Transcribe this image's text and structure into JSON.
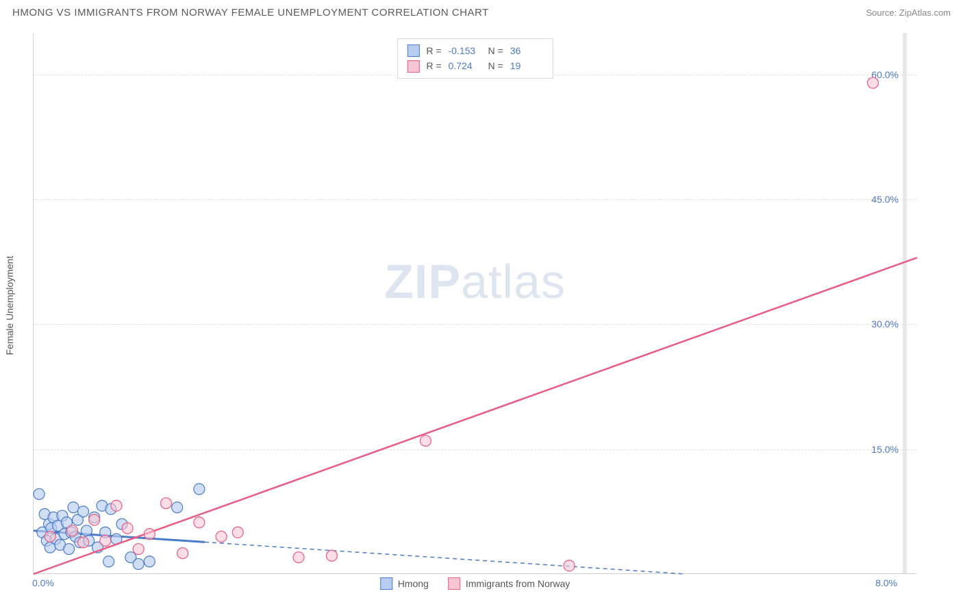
{
  "header": {
    "title": "HMONG VS IMMIGRANTS FROM NORWAY FEMALE UNEMPLOYMENT CORRELATION CHART",
    "source": "Source: ZipAtlas.com"
  },
  "chart": {
    "type": "scatter",
    "y_axis_label": "Female Unemployment",
    "watermark": "ZIPatlas",
    "xlim": [
      0,
      8.0
    ],
    "ylim": [
      0,
      65
    ],
    "y_ticks": [
      {
        "value": 15.0,
        "label": "15.0%"
      },
      {
        "value": 30.0,
        "label": "30.0%"
      },
      {
        "value": 45.0,
        "label": "45.0%"
      },
      {
        "value": 60.0,
        "label": "60.0%"
      }
    ],
    "x_left_label": "0.0%",
    "x_right_label": "8.0%",
    "grid_color": "#e0e0e0",
    "background_color": "#ffffff",
    "stats_legend": [
      {
        "swatch_fill": "#b8cef0",
        "swatch_border": "#4a7ac8",
        "r": "-0.153",
        "n": "36"
      },
      {
        "swatch_fill": "#f6c6d4",
        "swatch_border": "#e85b83",
        "r": "0.724",
        "n": "19"
      }
    ],
    "bottom_legend": [
      {
        "swatch_fill": "#b8cef0",
        "swatch_border": "#4a7ac8",
        "label": "Hmong"
      },
      {
        "swatch_fill": "#f6c6d4",
        "swatch_border": "#e85b83",
        "label": "Immigrants from Norway"
      }
    ],
    "series": [
      {
        "name": "hmong",
        "point_fill": "#b8cef0",
        "point_stroke": "#4a7ac8",
        "point_opacity": 0.65,
        "point_radius": 8,
        "line_color": "#4a7ac8",
        "line_width_solid": 3,
        "line_width_dash": 1.5,
        "line_dash": "6,5",
        "line_solid_to_x": 1.55,
        "line_start": {
          "x": 0.0,
          "y": 5.2
        },
        "line_end": {
          "x": 5.9,
          "y": 0.0
        },
        "points": [
          {
            "x": 0.05,
            "y": 9.6
          },
          {
            "x": 0.08,
            "y": 5.0
          },
          {
            "x": 0.1,
            "y": 7.2
          },
          {
            "x": 0.12,
            "y": 4.0
          },
          {
            "x": 0.14,
            "y": 6.0
          },
          {
            "x": 0.15,
            "y": 3.2
          },
          {
            "x": 0.16,
            "y": 5.5
          },
          {
            "x": 0.18,
            "y": 6.8
          },
          {
            "x": 0.2,
            "y": 4.2
          },
          {
            "x": 0.22,
            "y": 5.8
          },
          {
            "x": 0.24,
            "y": 3.5
          },
          {
            "x": 0.26,
            "y": 7.0
          },
          {
            "x": 0.28,
            "y": 4.8
          },
          {
            "x": 0.3,
            "y": 6.2
          },
          {
            "x": 0.32,
            "y": 3.0
          },
          {
            "x": 0.34,
            "y": 5.0
          },
          {
            "x": 0.36,
            "y": 8.0
          },
          {
            "x": 0.38,
            "y": 4.5
          },
          {
            "x": 0.4,
            "y": 6.5
          },
          {
            "x": 0.42,
            "y": 3.8
          },
          {
            "x": 0.45,
            "y": 7.5
          },
          {
            "x": 0.48,
            "y": 5.2
          },
          {
            "x": 0.5,
            "y": 4.0
          },
          {
            "x": 0.55,
            "y": 6.8
          },
          {
            "x": 0.58,
            "y": 3.2
          },
          {
            "x": 0.62,
            "y": 8.2
          },
          {
            "x": 0.65,
            "y": 5.0
          },
          {
            "x": 0.68,
            "y": 1.5
          },
          {
            "x": 0.7,
            "y": 7.8
          },
          {
            "x": 0.75,
            "y": 4.2
          },
          {
            "x": 0.8,
            "y": 6.0
          },
          {
            "x": 0.88,
            "y": 2.0
          },
          {
            "x": 0.95,
            "y": 1.2
          },
          {
            "x": 1.05,
            "y": 1.5
          },
          {
            "x": 1.3,
            "y": 8.0
          },
          {
            "x": 1.5,
            "y": 10.2
          }
        ]
      },
      {
        "name": "norway",
        "point_fill": "#f6c6d4",
        "point_stroke": "#e85b83",
        "point_opacity": 0.6,
        "point_radius": 8,
        "line_color": "#e85b83",
        "line_width_solid": 2.5,
        "line_start": {
          "x": 0.0,
          "y": 0.0
        },
        "line_end": {
          "x": 8.0,
          "y": 38.0
        },
        "points": [
          {
            "x": 0.15,
            "y": 4.5
          },
          {
            "x": 0.35,
            "y": 5.2
          },
          {
            "x": 0.45,
            "y": 3.8
          },
          {
            "x": 0.55,
            "y": 6.5
          },
          {
            "x": 0.65,
            "y": 4.0
          },
          {
            "x": 0.75,
            "y": 8.2
          },
          {
            "x": 0.85,
            "y": 5.5
          },
          {
            "x": 0.95,
            "y": 3.0
          },
          {
            "x": 1.05,
            "y": 4.8
          },
          {
            "x": 1.2,
            "y": 8.5
          },
          {
            "x": 1.35,
            "y": 2.5
          },
          {
            "x": 1.5,
            "y": 6.2
          },
          {
            "x": 1.7,
            "y": 4.5
          },
          {
            "x": 1.85,
            "y": 5.0
          },
          {
            "x": 2.4,
            "y": 2.0
          },
          {
            "x": 2.7,
            "y": 2.2
          },
          {
            "x": 3.55,
            "y": 16.0
          },
          {
            "x": 4.85,
            "y": 1.0
          },
          {
            "x": 7.6,
            "y": 59.0
          }
        ]
      }
    ]
  }
}
